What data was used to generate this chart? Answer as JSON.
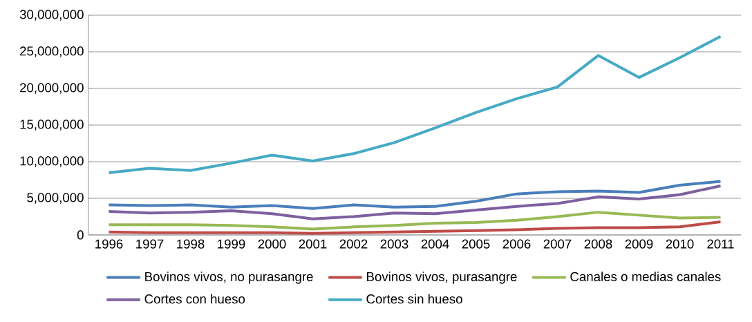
{
  "chart_data": {
    "type": "line",
    "categories": [
      "1996",
      "1997",
      "1998",
      "1999",
      "2000",
      "2001",
      "2002",
      "2003",
      "2004",
      "2005",
      "2006",
      "2007",
      "2008",
      "2009",
      "2010",
      "2011"
    ],
    "series": [
      {
        "name": "Bovinos vivos, no purasangre",
        "color": "#4a7ebb",
        "values": [
          4100000,
          4000000,
          4100000,
          3800000,
          4000000,
          3600000,
          4100000,
          3800000,
          3900000,
          4600000,
          5600000,
          5900000,
          6000000,
          5800000,
          6800000,
          7300000
        ]
      },
      {
        "name": "Bovinos vivos, purasangre",
        "color": "#be4b48",
        "values": [
          400000,
          300000,
          300000,
          300000,
          300000,
          200000,
          300000,
          400000,
          500000,
          600000,
          700000,
          900000,
          1000000,
          1000000,
          1100000,
          1800000
        ]
      },
      {
        "name": "Canales o medias canales",
        "color": "#98b954",
        "values": [
          1400000,
          1400000,
          1400000,
          1300000,
          1100000,
          800000,
          1100000,
          1300000,
          1600000,
          1700000,
          2000000,
          2500000,
          3100000,
          2700000,
          2300000,
          2400000
        ]
      },
      {
        "name": "Cortes con hueso",
        "color": "#7d60a0",
        "values": [
          3200000,
          3000000,
          3100000,
          3300000,
          2900000,
          2200000,
          2500000,
          3000000,
          2900000,
          3400000,
          3900000,
          4300000,
          5200000,
          4900000,
          5500000,
          6700000
        ]
      },
      {
        "name": "Cortes sin hueso",
        "color": "#46aac5",
        "values": [
          8500000,
          9100000,
          8800000,
          9800000,
          10900000,
          10100000,
          11100000,
          12600000,
          14600000,
          16700000,
          18600000,
          20200000,
          24500000,
          21500000,
          24200000,
          27100000
        ]
      }
    ],
    "ylim": [
      0,
      30000000
    ],
    "yticks": [
      {
        "value": 0,
        "label": "0"
      },
      {
        "value": 5000000,
        "label": "5,000,000"
      },
      {
        "value": 10000000,
        "label": "10,000,000"
      },
      {
        "value": 15000000,
        "label": "15,000,000"
      },
      {
        "value": 20000000,
        "label": "20,000,000"
      },
      {
        "value": 25000000,
        "label": "25,000,000"
      },
      {
        "value": 30000000,
        "label": "30,000,000"
      }
    ],
    "grid": "y",
    "legend": "bottom",
    "marker": "none",
    "line_style": "solid"
  }
}
